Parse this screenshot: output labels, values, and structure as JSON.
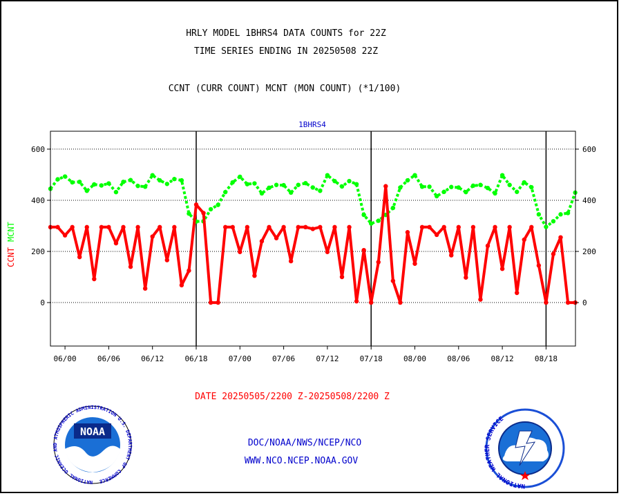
{
  "header": {
    "title_line1": "HRLY MODEL 1BHRS4 DATA COUNTS for 22Z",
    "title_line2": "TIME SERIES ENDING IN 20250508 22Z",
    "subtitle": "CCNT (CURR COUNT) MCNT (MON COUNT) (*1/100)"
  },
  "footer": {
    "date_range": "DATE 20250505/2200 Z-20250508/2200 Z",
    "org_line": "DOC/NOAA/NWS/NCEP/NCO",
    "url_line": "WWW.NCO.NCEP.NOAA.GOV"
  },
  "logos": {
    "noaa": {
      "center_text": "NOAA",
      "ring_text": "NATIONAL OCEANIC AND ATMOSPHERIC ADMINISTRATION U.S. DEPARTMENT OF COMMERCE"
    },
    "nws": {
      "ring_text": "NATIONAL WEATHER SERVICE"
    }
  },
  "chart_data": {
    "type": "line",
    "title": "1BHRS4",
    "ylabel_ccnt": "CCNT",
    "ylabel_mcnt": "MCNT",
    "ylim": [
      -170,
      670
    ],
    "yticks": [
      0,
      200,
      400,
      600
    ],
    "x_count": 73,
    "x_ticks": [
      {
        "index": 2,
        "label": "06/00"
      },
      {
        "index": 8,
        "label": "06/06"
      },
      {
        "index": 14,
        "label": "06/12"
      },
      {
        "index": 20,
        "label": "06/18"
      },
      {
        "index": 26,
        "label": "07/00"
      },
      {
        "index": 32,
        "label": "07/06"
      },
      {
        "index": 38,
        "label": "07/12"
      },
      {
        "index": 44,
        "label": "07/18"
      },
      {
        "index": 50,
        "label": "08/00"
      },
      {
        "index": 56,
        "label": "08/06"
      },
      {
        "index": 62,
        "label": "08/12"
      },
      {
        "index": 68,
        "label": "08/18"
      }
    ],
    "day_separators": [
      20,
      44,
      68
    ],
    "grid_y": true,
    "colors": {
      "ccnt": "#ff0000",
      "mcnt": "#00ff00",
      "title": "#0000cc",
      "date": "#ff0000",
      "footer_text": "#0000cc"
    },
    "series": [
      {
        "name": "CCNT",
        "values": [
          295,
          295,
          263,
          295,
          178,
          295,
          92,
          295,
          295,
          232,
          295,
          140,
          295,
          55,
          258,
          295,
          166,
          295,
          68,
          125,
          383,
          350,
          0,
          0,
          295,
          295,
          198,
          295,
          105,
          240,
          295,
          252,
          295,
          162,
          295,
          295,
          288,
          295,
          198,
          295,
          100,
          295,
          5,
          205,
          0,
          158,
          455,
          85,
          0,
          275,
          152,
          295,
          295,
          265,
          295,
          185,
          295,
          98,
          295,
          12,
          222,
          295,
          132,
          295,
          38,
          246,
          295,
          145,
          0,
          190,
          255,
          0,
          0
        ]
      },
      {
        "name": "MCNT",
        "values": [
          445,
          482,
          493,
          470,
          472,
          437,
          462,
          458,
          466,
          432,
          472,
          479,
          456,
          453,
          498,
          478,
          464,
          483,
          478,
          348,
          317,
          318,
          365,
          382,
          432,
          470,
          492,
          463,
          466,
          427,
          449,
          460,
          459,
          430,
          460,
          467,
          450,
          437,
          498,
          475,
          454,
          475,
          463,
          343,
          309,
          320,
          343,
          370,
          450,
          478,
          498,
          453,
          453,
          416,
          433,
          452,
          450,
          432,
          457,
          460,
          448,
          427,
          498,
          460,
          433,
          470,
          451,
          345,
          296,
          318,
          345,
          350,
          430
        ]
      }
    ]
  }
}
